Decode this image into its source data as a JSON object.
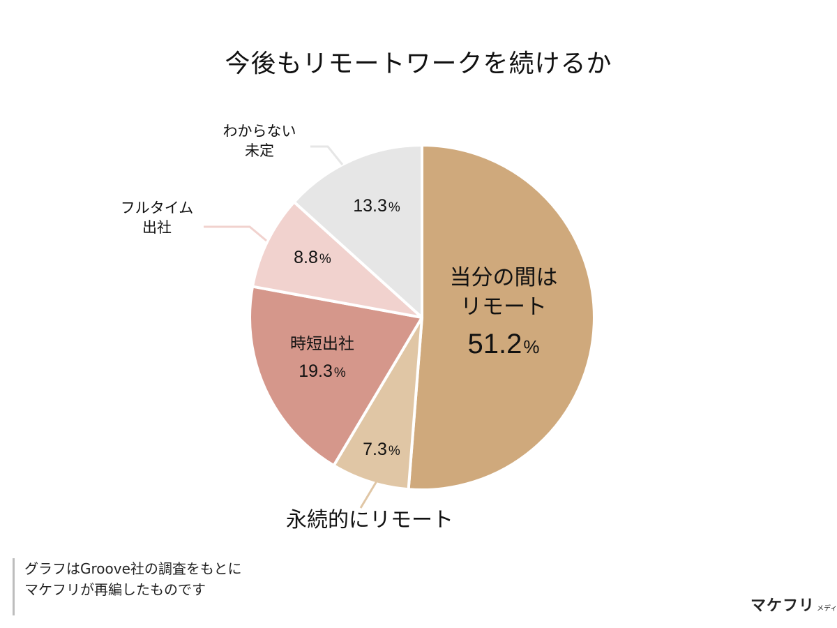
{
  "title": "今後もリモートワークを続けるか",
  "chart_data": {
    "type": "pie",
    "start_angle_deg": 0,
    "direction": "clockwise",
    "slices": [
      {
        "label_lines": [
          "当分の間は",
          "リモート"
        ],
        "value": 51.2,
        "value_text": "51.2",
        "color": "#CFA97C"
      },
      {
        "label_lines": [
          "永続的にリモート"
        ],
        "value": 7.3,
        "value_text": "7.3",
        "color": "#E0C6A5"
      },
      {
        "label_lines": [
          "時短出社"
        ],
        "value": 19.3,
        "value_text": "19.3",
        "color": "#D5978B"
      },
      {
        "label_lines": [
          "フルタイム",
          "出社"
        ],
        "value": 8.8,
        "value_text": "8.8",
        "color": "#F1D2CE"
      },
      {
        "label_lines": [
          "わからない",
          "未定"
        ],
        "value": 13.3,
        "value_text": "13.3",
        "color": "#E6E6E6"
      }
    ],
    "unit": "%"
  },
  "source": {
    "lines": [
      "グラフはGroove社の調査をもとに",
      "マケフリが再編したものです"
    ]
  },
  "logo": {
    "main": "マケフリ",
    "sub": "メディア"
  }
}
